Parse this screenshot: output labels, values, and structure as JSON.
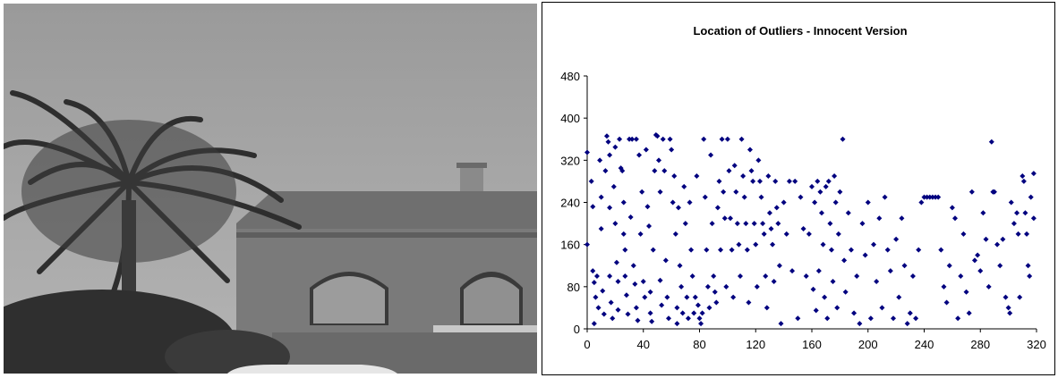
{
  "photo": {
    "description_icon": "photo-icon"
  },
  "chart_data": {
    "type": "scatter",
    "title": "Location of Outliers - Innocent Version",
    "xlabel": "",
    "ylabel": "",
    "xlim": [
      0,
      320
    ],
    "ylim": [
      0,
      480
    ],
    "x_ticks": [
      "0",
      "40",
      "80",
      "120",
      "160",
      "200",
      "240",
      "280",
      "320"
    ],
    "y_ticks": [
      "0",
      "80",
      "160",
      "240",
      "320",
      "400",
      "480"
    ],
    "grid": false,
    "legend": "none",
    "marker_color": "#00007f",
    "marker": "diamond",
    "series": [
      {
        "points": [
          [
            0,
            335
          ],
          [
            0,
            160
          ],
          [
            3,
            280
          ],
          [
            4,
            232
          ],
          [
            4,
            110
          ],
          [
            5,
            88
          ],
          [
            5,
            10
          ],
          [
            6,
            60
          ],
          [
            7,
            100
          ],
          [
            8,
            40
          ],
          [
            9,
            320
          ],
          [
            10,
            250
          ],
          [
            10,
            190
          ],
          [
            11,
            72
          ],
          [
            12,
            28
          ],
          [
            13,
            300
          ],
          [
            14,
            366
          ],
          [
            15,
            355
          ],
          [
            16,
            330
          ],
          [
            16,
            230
          ],
          [
            16,
            100
          ],
          [
            17,
            50
          ],
          [
            18,
            20
          ],
          [
            19,
            270
          ],
          [
            20,
            345
          ],
          [
            20,
            200
          ],
          [
            21,
            126
          ],
          [
            22,
            90
          ],
          [
            22,
            36
          ],
          [
            23,
            360
          ],
          [
            24,
            305
          ],
          [
            25,
            300
          ],
          [
            26,
            240
          ],
          [
            26,
            180
          ],
          [
            27,
            150
          ],
          [
            27,
            100
          ],
          [
            28,
            64
          ],
          [
            29,
            28
          ],
          [
            30,
            360
          ],
          [
            31,
            212
          ],
          [
            32,
            360
          ],
          [
            33,
            120
          ],
          [
            34,
            85
          ],
          [
            35,
            360
          ],
          [
            35,
            40
          ],
          [
            36,
            16
          ],
          [
            37,
            330
          ],
          [
            38,
            180
          ],
          [
            39,
            260
          ],
          [
            40,
            90
          ],
          [
            41,
            60
          ],
          [
            42,
            340
          ],
          [
            43,
            232
          ],
          [
            44,
            195
          ],
          [
            45,
            70
          ],
          [
            45,
            30
          ],
          [
            46,
            14
          ],
          [
            47,
            150
          ],
          [
            48,
            300
          ],
          [
            49,
            368
          ],
          [
            50,
            366
          ],
          [
            51,
            320
          ],
          [
            52,
            260
          ],
          [
            52,
            92
          ],
          [
            53,
            45
          ],
          [
            54,
            360
          ],
          [
            55,
            300
          ],
          [
            56,
            130
          ],
          [
            57,
            60
          ],
          [
            58,
            20
          ],
          [
            59,
            360
          ],
          [
            60,
            340
          ],
          [
            61,
            240
          ],
          [
            62,
            290
          ],
          [
            63,
            180
          ],
          [
            64,
            40
          ],
          [
            64,
            10
          ],
          [
            65,
            230
          ],
          [
            66,
            120
          ],
          [
            67,
            80
          ],
          [
            68,
            30
          ],
          [
            69,
            270
          ],
          [
            70,
            200
          ],
          [
            71,
            60
          ],
          [
            72,
            20
          ],
          [
            73,
            240
          ],
          [
            74,
            150
          ],
          [
            75,
            100
          ],
          [
            76,
            30
          ],
          [
            77,
            60
          ],
          [
            78,
            290
          ],
          [
            79,
            45
          ],
          [
            80,
            20
          ],
          [
            81,
            10
          ],
          [
            82,
            30
          ],
          [
            83,
            360
          ],
          [
            84,
            250
          ],
          [
            85,
            150
          ],
          [
            86,
            80
          ],
          [
            87,
            40
          ],
          [
            88,
            330
          ],
          [
            89,
            200
          ],
          [
            90,
            100
          ],
          [
            91,
            70
          ],
          [
            92,
            50
          ],
          [
            93,
            230
          ],
          [
            94,
            280
          ],
          [
            95,
            150
          ],
          [
            96,
            360
          ],
          [
            97,
            260
          ],
          [
            98,
            210
          ],
          [
            99,
            80
          ],
          [
            100,
            360
          ],
          [
            101,
            300
          ],
          [
            102,
            210
          ],
          [
            103,
            150
          ],
          [
            104,
            60
          ],
          [
            105,
            310
          ],
          [
            106,
            260
          ],
          [
            107,
            200
          ],
          [
            108,
            160
          ],
          [
            109,
            100
          ],
          [
            110,
            360
          ],
          [
            111,
            290
          ],
          [
            112,
            250
          ],
          [
            113,
            200
          ],
          [
            114,
            150
          ],
          [
            115,
            50
          ],
          [
            116,
            340
          ],
          [
            117,
            300
          ],
          [
            118,
            280
          ],
          [
            119,
            200
          ],
          [
            120,
            160
          ],
          [
            121,
            80
          ],
          [
            122,
            320
          ],
          [
            123,
            280
          ],
          [
            124,
            250
          ],
          [
            125,
            200
          ],
          [
            126,
            180
          ],
          [
            127,
            100
          ],
          [
            128,
            40
          ],
          [
            129,
            290
          ],
          [
            130,
            220
          ],
          [
            131,
            190
          ],
          [
            132,
            160
          ],
          [
            133,
            90
          ],
          [
            134,
            280
          ],
          [
            135,
            230
          ],
          [
            136,
            200
          ],
          [
            137,
            120
          ],
          [
            138,
            10
          ],
          [
            140,
            240
          ],
          [
            142,
            180
          ],
          [
            144,
            280
          ],
          [
            146,
            110
          ],
          [
            148,
            280
          ],
          [
            150,
            20
          ],
          [
            152,
            250
          ],
          [
            154,
            190
          ],
          [
            156,
            100
          ],
          [
            158,
            180
          ],
          [
            160,
            270
          ],
          [
            161,
            75
          ],
          [
            162,
            240
          ],
          [
            163,
            35
          ],
          [
            164,
            280
          ],
          [
            165,
            110
          ],
          [
            166,
            260
          ],
          [
            167,
            220
          ],
          [
            168,
            160
          ],
          [
            169,
            60
          ],
          [
            170,
            270
          ],
          [
            171,
            20
          ],
          [
            172,
            280
          ],
          [
            173,
            200
          ],
          [
            174,
            150
          ],
          [
            175,
            90
          ],
          [
            176,
            290
          ],
          [
            177,
            240
          ],
          [
            178,
            40
          ],
          [
            179,
            180
          ],
          [
            180,
            260
          ],
          [
            182,
            360
          ],
          [
            183,
            130
          ],
          [
            184,
            70
          ],
          [
            186,
            220
          ],
          [
            188,
            150
          ],
          [
            190,
            30
          ],
          [
            192,
            100
          ],
          [
            194,
            10
          ],
          [
            196,
            200
          ],
          [
            198,
            140
          ],
          [
            200,
            240
          ],
          [
            202,
            20
          ],
          [
            204,
            160
          ],
          [
            206,
            90
          ],
          [
            208,
            210
          ],
          [
            210,
            40
          ],
          [
            212,
            250
          ],
          [
            214,
            150
          ],
          [
            216,
            110
          ],
          [
            218,
            20
          ],
          [
            220,
            170
          ],
          [
            222,
            60
          ],
          [
            224,
            210
          ],
          [
            226,
            120
          ],
          [
            228,
            10
          ],
          [
            230,
            30
          ],
          [
            232,
            100
          ],
          [
            234,
            20
          ],
          [
            236,
            150
          ],
          [
            238,
            240
          ],
          [
            240,
            250
          ],
          [
            242,
            250
          ],
          [
            244,
            250
          ],
          [
            246,
            250
          ],
          [
            248,
            250
          ],
          [
            250,
            250
          ],
          [
            252,
            150
          ],
          [
            254,
            80
          ],
          [
            256,
            50
          ],
          [
            258,
            120
          ],
          [
            260,
            230
          ],
          [
            262,
            210
          ],
          [
            264,
            20
          ],
          [
            266,
            100
          ],
          [
            268,
            180
          ],
          [
            270,
            70
          ],
          [
            272,
            30
          ],
          [
            274,
            260
          ],
          [
            276,
            130
          ],
          [
            278,
            140
          ],
          [
            280,
            110
          ],
          [
            282,
            220
          ],
          [
            284,
            170
          ],
          [
            286,
            80
          ],
          [
            288,
            355
          ],
          [
            289,
            260
          ],
          [
            290,
            260
          ],
          [
            292,
            160
          ],
          [
            294,
            120
          ],
          [
            296,
            170
          ],
          [
            298,
            60
          ],
          [
            300,
            40
          ],
          [
            301,
            30
          ],
          [
            302,
            240
          ],
          [
            304,
            200
          ],
          [
            306,
            220
          ],
          [
            307,
            180
          ],
          [
            308,
            60
          ],
          [
            310,
            290
          ],
          [
            311,
            280
          ],
          [
            312,
            220
          ],
          [
            313,
            180
          ],
          [
            314,
            120
          ],
          [
            315,
            100
          ],
          [
            316,
            250
          ],
          [
            318,
            210
          ],
          [
            318,
            295
          ]
        ]
      }
    ]
  }
}
